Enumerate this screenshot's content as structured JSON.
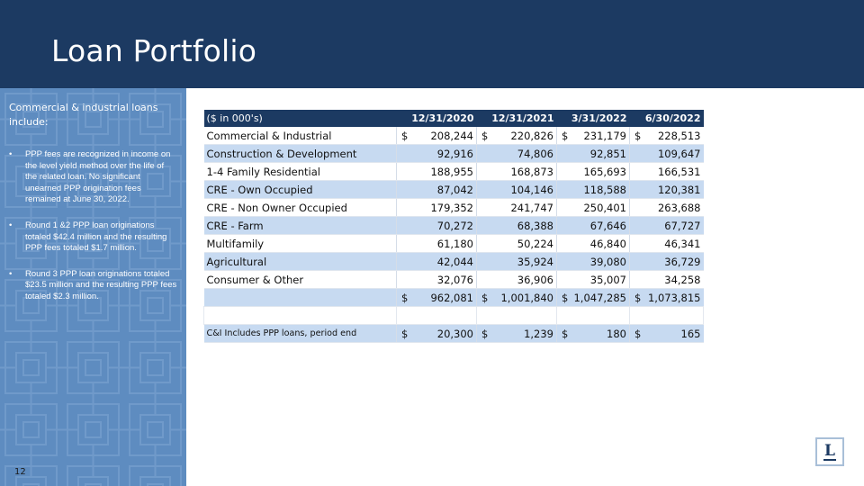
{
  "slide": {
    "title": "Loan Portfolio",
    "page_number": "12"
  },
  "sidebar": {
    "intro": "Commercial & industrial loans include:",
    "bullets": [
      "PPP fees are recognized in income on the level yield method over the life of the related loan. No significant unearned PPP origination fees remained at June 30, 2022.",
      "Round 1 &2 PPP loan originations totaled $42.4 million and the resulting PPP fees totaled $1.7 million.",
      "Round 3 PPP loan originations totaled $23.5 million and the resulting PPP fees totaled $2.3 million."
    ],
    "bullet_glyph": "•"
  },
  "table": {
    "header": {
      "label": "($ in 000's)",
      "dates": [
        "12/31/2020",
        "12/31/2021",
        "3/31/2022",
        "6/30/2022"
      ]
    },
    "currency_symbol": "$",
    "rows": [
      {
        "label": "Commercial & Industrial",
        "values": [
          "208,244",
          "220,826",
          "231,179",
          "228,513"
        ]
      },
      {
        "label": "Construction & Development",
        "values": [
          "92,916",
          "74,806",
          "92,851",
          "109,647"
        ]
      },
      {
        "label": "1-4 Family Residential",
        "values": [
          "188,955",
          "168,873",
          "165,693",
          "166,531"
        ]
      },
      {
        "label": "CRE - Own Occupied",
        "values": [
          "87,042",
          "104,146",
          "118,588",
          "120,381"
        ]
      },
      {
        "label": "CRE - Non Owner Occupied",
        "values": [
          "179,352",
          "241,747",
          "250,401",
          "263,688"
        ]
      },
      {
        "label": "CRE - Farm",
        "values": [
          "70,272",
          "68,388",
          "67,646",
          "67,727"
        ]
      },
      {
        "label": "Multifamily",
        "values": [
          "61,180",
          "50,224",
          "46,840",
          "46,341"
        ]
      },
      {
        "label": "Agricultural",
        "values": [
          "42,044",
          "35,924",
          "39,080",
          "36,729"
        ]
      },
      {
        "label": "Consumer & Other",
        "values": [
          "32,076",
          "36,906",
          "35,007",
          "34,258"
        ]
      }
    ],
    "total": {
      "values": [
        "962,081",
        "1,001,840",
        "1,047,285",
        "1,073,815"
      ]
    },
    "ppp_row": {
      "label": "C&I Includes PPP loans, period end",
      "values": [
        "20,300",
        "1,239",
        "180",
        "165"
      ]
    }
  },
  "logo": {
    "glyph": "L"
  },
  "colors": {
    "navy": "#1c3a62",
    "sidebar_blue": "#5e8cc0",
    "row_blue": "#c7daf1"
  }
}
